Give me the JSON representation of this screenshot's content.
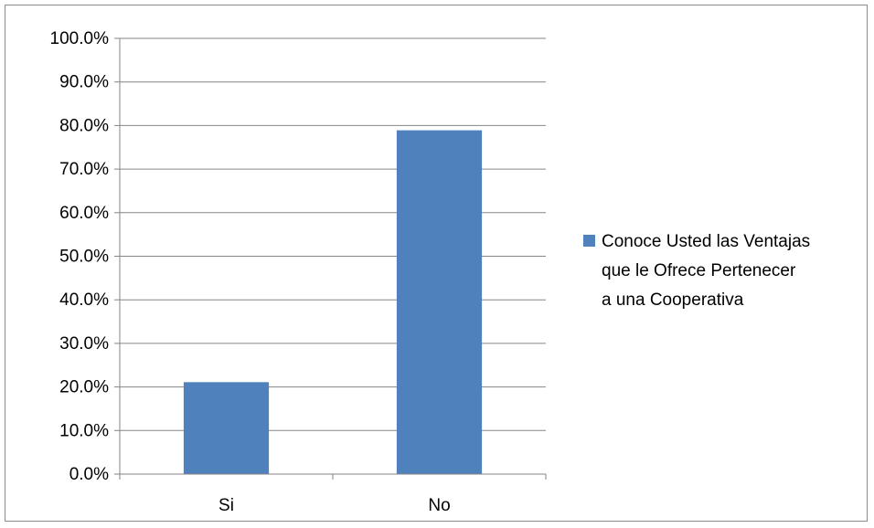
{
  "chart_data": {
    "type": "bar",
    "categories": [
      "Si",
      "No"
    ],
    "series": [
      {
        "name": "Conoce Usted las Ventajas que le Ofrece Pertenecer a una Cooperativa",
        "values": [
          21.1,
          78.9
        ],
        "color": "#4f81bd"
      }
    ],
    "ylim": [
      0,
      100
    ],
    "y_ticks": [
      "0.0%",
      "10.0%",
      "20.0%",
      "30.0%",
      "40.0%",
      "50.0%",
      "60.0%",
      "70.0%",
      "80.0%",
      "90.0%",
      "100.0%"
    ],
    "grid": true,
    "legend_position": "right",
    "legend_lines": [
      "Conoce Usted las Ventajas",
      "que le Ofrece Pertenecer",
      "a una Cooperativa"
    ],
    "gridline_color": "#868686"
  }
}
